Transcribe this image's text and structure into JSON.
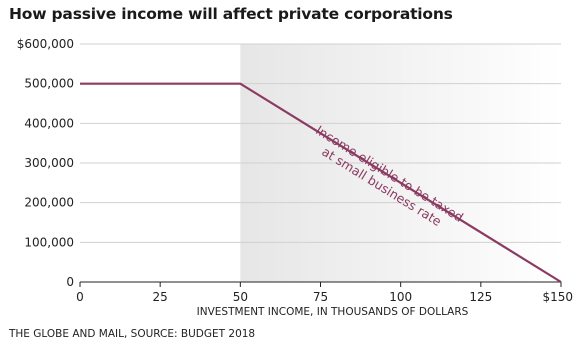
{
  "title": "How passive income will affect private corporations",
  "source": "THE GLOBE AND MAIL, SOURCE: BUDGET 2018",
  "colors": {
    "line": "#8b3a62",
    "shade": "#ececec",
    "grid": "#d0d0d0",
    "annotation": "#8b3a62"
  },
  "chart_data": {
    "type": "line",
    "title": "How passive income will affect private corporations",
    "xlabel": "INVESTMENT INCOME, IN THOUSANDS OF DOLLARS",
    "ylabel": "",
    "xlim": [
      0,
      150
    ],
    "ylim": [
      0,
      600000
    ],
    "x_ticks": [
      {
        "value": 0,
        "label": "0"
      },
      {
        "value": 25,
        "label": "25"
      },
      {
        "value": 50,
        "label": "50"
      },
      {
        "value": 75,
        "label": "75"
      },
      {
        "value": 100,
        "label": "100"
      },
      {
        "value": 125,
        "label": "125"
      },
      {
        "value": 150,
        "label": "$150"
      }
    ],
    "y_ticks": [
      {
        "value": 0,
        "label": "0"
      },
      {
        "value": 100000,
        "label": "100,000"
      },
      {
        "value": 200000,
        "label": "200,000"
      },
      {
        "value": 300000,
        "label": "300,000"
      },
      {
        "value": 400000,
        "label": "400,000"
      },
      {
        "value": 500000,
        "label": "500,000"
      },
      {
        "value": 600000,
        "label": "$600,000"
      }
    ],
    "grid": true,
    "shaded_region": {
      "x_start": 50,
      "x_end": 150
    },
    "series": [
      {
        "x": [
          0,
          50,
          150
        ],
        "y": [
          500000,
          500000,
          0
        ]
      }
    ],
    "annotation": {
      "lines": [
        "Income eligible to be taxed",
        "at small business rate"
      ]
    }
  }
}
